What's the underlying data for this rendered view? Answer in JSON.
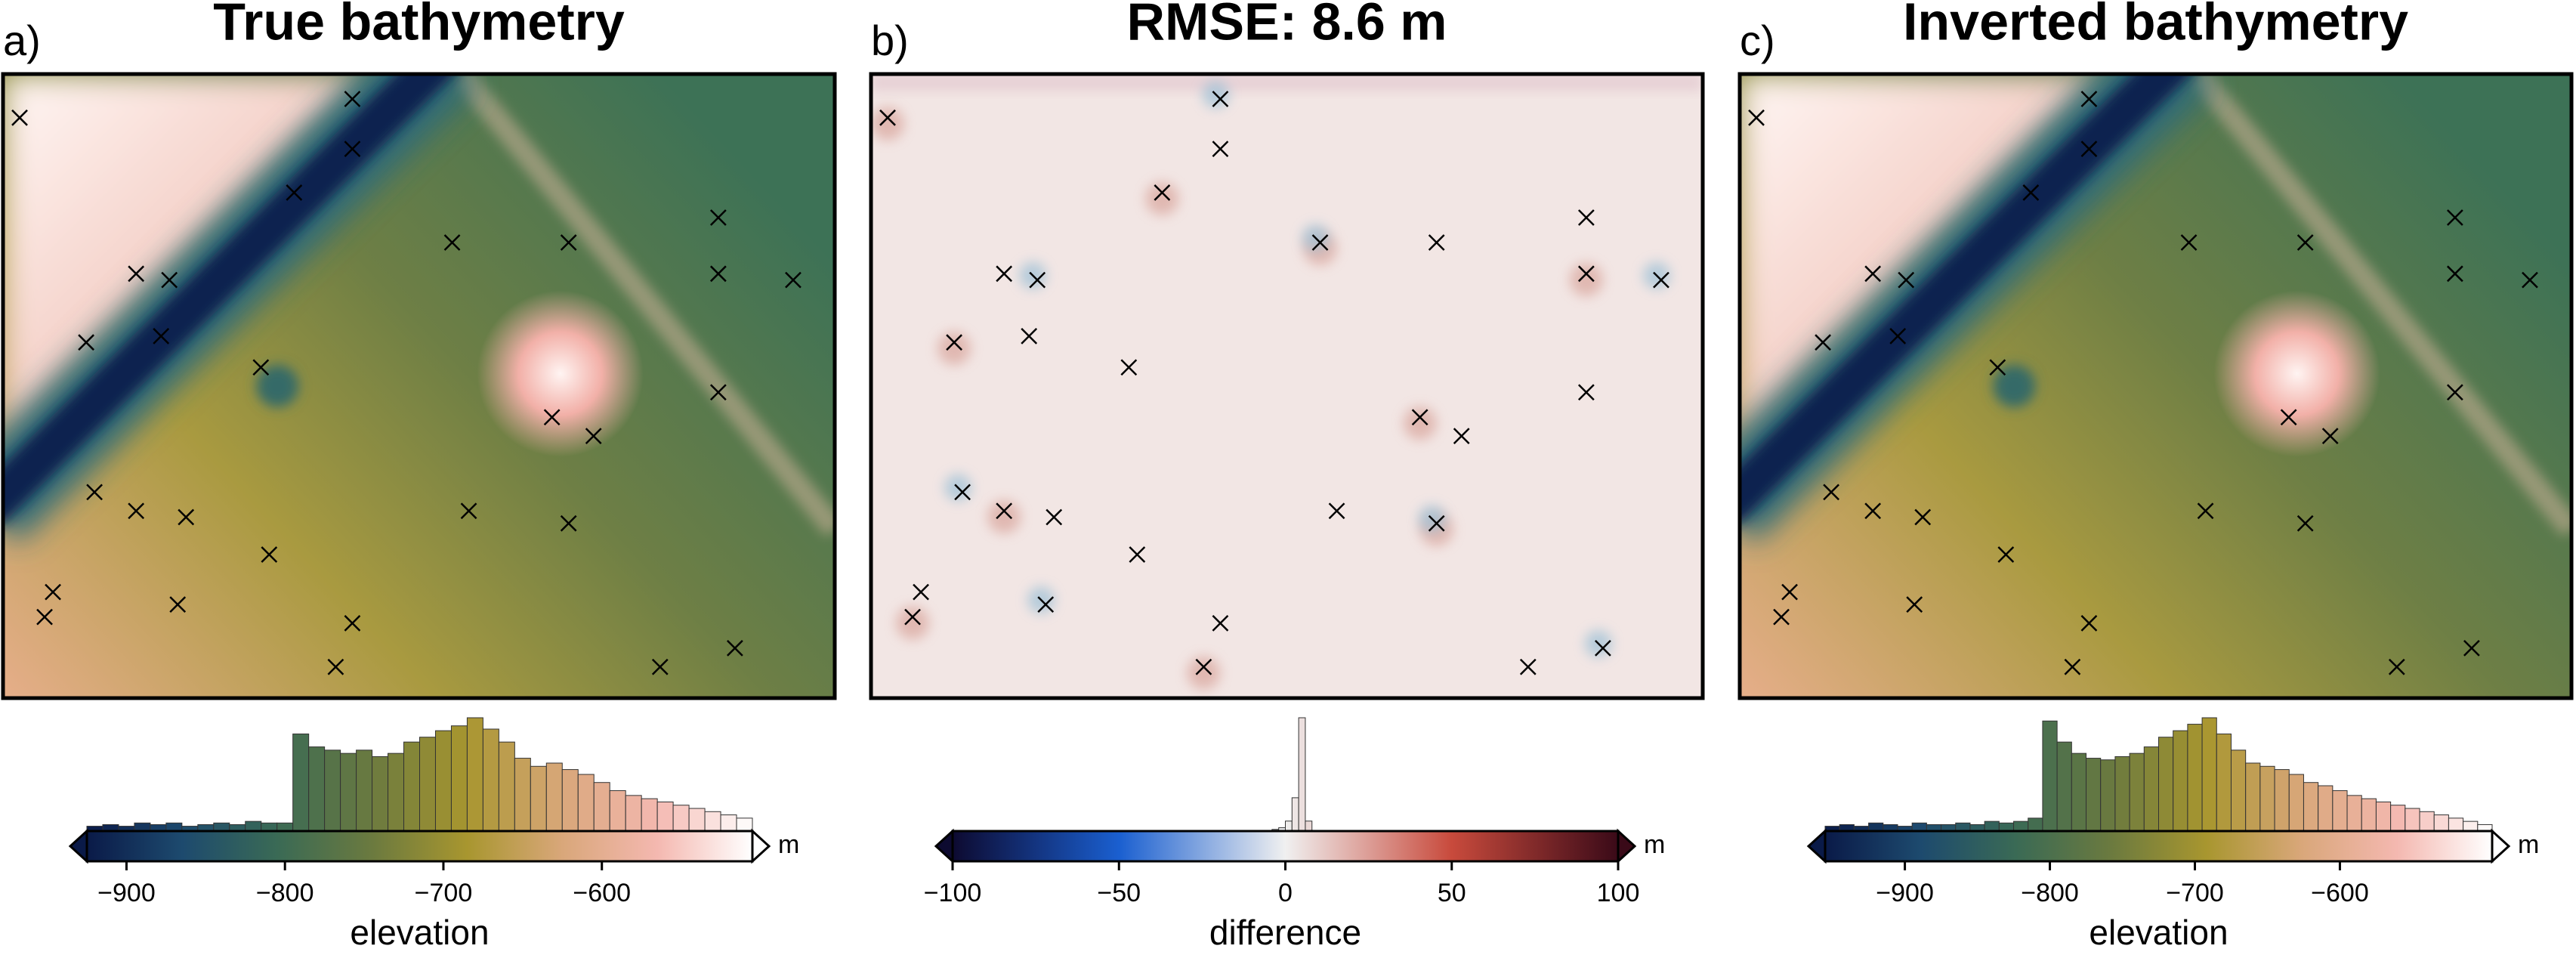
{
  "chart_data": [
    {
      "type": "map_histogram",
      "panel_label": "a)",
      "title": "True bathymetry",
      "points": {
        "x": [
          0.02,
          0.42,
          0.42,
          0.35,
          0.16,
          0.2,
          0.1,
          0.19,
          0.31,
          0.54,
          0.68,
          0.86,
          0.86,
          0.95,
          0.86,
          0.66,
          0.71,
          0.11,
          0.16,
          0.22,
          0.56,
          0.68,
          0.32,
          0.06,
          0.05,
          0.21,
          0.42,
          0.4,
          0.79,
          0.88
        ],
        "y": [
          0.07,
          0.04,
          0.12,
          0.19,
          0.32,
          0.33,
          0.43,
          0.42,
          0.47,
          0.27,
          0.27,
          0.23,
          0.32,
          0.33,
          0.51,
          0.55,
          0.58,
          0.67,
          0.7,
          0.71,
          0.7,
          0.72,
          0.77,
          0.83,
          0.87,
          0.85,
          0.88,
          0.95,
          0.95,
          0.92
        ]
      },
      "colorbar": {
        "xlim": [
          -925,
          -505
        ],
        "xticks": [
          {
            "value": -900,
            "label": "−900"
          },
          {
            "value": -800,
            "label": "−800"
          },
          {
            "value": -700,
            "label": "−700"
          },
          {
            "value": -600,
            "label": "−600"
          }
        ],
        "xlabel": "elevation",
        "unit": "m",
        "colormap": [
          "#0a1a48",
          "#1d4a6e",
          "#3a6a55",
          "#6b7a3f",
          "#a8962f",
          "#d9a77a",
          "#f4b8b0",
          "#ffffff"
        ],
        "bins": [
          -925,
          -915,
          -905,
          -895,
          -885,
          -875,
          -865,
          -855,
          -845,
          -835,
          -825,
          -815,
          -805,
          -795,
          -785,
          -775,
          -765,
          -755,
          -745,
          -735,
          -725,
          -715,
          -705,
          -695,
          -685,
          -675,
          -665,
          -655,
          -645,
          -635,
          -625,
          -615,
          -605,
          -595,
          -585,
          -575,
          -565,
          -555,
          -545,
          -535,
          -525,
          -515,
          -505
        ],
        "counts": [
          3,
          4,
          3,
          5,
          4,
          5,
          3,
          4,
          5,
          4,
          6,
          5,
          5,
          60,
          52,
          50,
          48,
          50,
          46,
          48,
          55,
          58,
          62,
          65,
          70,
          63,
          55,
          45,
          40,
          42,
          38,
          35,
          30,
          25,
          22,
          20,
          18,
          16,
          14,
          12,
          10,
          8
        ]
      }
    },
    {
      "type": "map_histogram",
      "panel_label": "b)",
      "title": "RMSE: 8.6 m",
      "points": {
        "x": [
          0.02,
          0.42,
          0.42,
          0.35,
          0.16,
          0.2,
          0.1,
          0.19,
          0.31,
          0.54,
          0.68,
          0.86,
          0.86,
          0.95,
          0.86,
          0.66,
          0.71,
          0.11,
          0.16,
          0.22,
          0.56,
          0.68,
          0.32,
          0.06,
          0.05,
          0.21,
          0.42,
          0.4,
          0.79,
          0.88
        ],
        "y": [
          0.07,
          0.04,
          0.12,
          0.19,
          0.32,
          0.33,
          0.43,
          0.42,
          0.47,
          0.27,
          0.27,
          0.23,
          0.32,
          0.33,
          0.51,
          0.55,
          0.58,
          0.67,
          0.7,
          0.71,
          0.7,
          0.72,
          0.77,
          0.83,
          0.87,
          0.85,
          0.88,
          0.95,
          0.95,
          0.92
        ]
      },
      "colorbar": {
        "xlim": [
          -100,
          100
        ],
        "xticks": [
          {
            "value": -100,
            "label": "−100"
          },
          {
            "value": -50,
            "label": "−50"
          },
          0,
          50,
          100
        ],
        "xlabel": "difference",
        "unit": "m",
        "colormap": [
          "#0d0a30",
          "#1a5fd0",
          "#f0f0f0",
          "#c84a3c",
          "#3a0a18"
        ],
        "bins": [
          -4,
          -2,
          0,
          2,
          4,
          6,
          8
        ],
        "counts": [
          1,
          2,
          6,
          20,
          68,
          6
        ]
      }
    },
    {
      "type": "map_histogram",
      "panel_label": "c)",
      "title": "Inverted bathymetry",
      "points": {
        "x": [
          0.02,
          0.42,
          0.42,
          0.35,
          0.16,
          0.2,
          0.1,
          0.19,
          0.31,
          0.54,
          0.68,
          0.86,
          0.86,
          0.95,
          0.86,
          0.66,
          0.71,
          0.11,
          0.16,
          0.22,
          0.56,
          0.68,
          0.32,
          0.06,
          0.05,
          0.21,
          0.42,
          0.4,
          0.79,
          0.88
        ],
        "y": [
          0.07,
          0.04,
          0.12,
          0.19,
          0.32,
          0.33,
          0.43,
          0.42,
          0.47,
          0.27,
          0.27,
          0.23,
          0.32,
          0.33,
          0.51,
          0.55,
          0.58,
          0.67,
          0.7,
          0.71,
          0.7,
          0.72,
          0.77,
          0.83,
          0.87,
          0.85,
          0.88,
          0.95,
          0.95,
          0.92
        ]
      },
      "colorbar": {
        "xlim": [
          -955,
          -495
        ],
        "xticks": [
          {
            "value": -900,
            "label": "−900"
          },
          {
            "value": -800,
            "label": "−800"
          },
          {
            "value": -700,
            "label": "−700"
          },
          {
            "value": -600,
            "label": "−600"
          }
        ],
        "xlabel": "elevation",
        "unit": "m",
        "colormap": [
          "#0a1a48",
          "#1d4a6e",
          "#3a6a55",
          "#6b7a3f",
          "#a8962f",
          "#d9a77a",
          "#f4b8b0",
          "#ffffff"
        ],
        "bins": [
          -955,
          -945,
          -935,
          -925,
          -915,
          -905,
          -895,
          -885,
          -875,
          -865,
          -855,
          -845,
          -835,
          -825,
          -815,
          -805,
          -795,
          -785,
          -775,
          -765,
          -755,
          -745,
          -735,
          -725,
          -715,
          -705,
          -695,
          -685,
          -675,
          -665,
          -655,
          -645,
          -635,
          -625,
          -615,
          -605,
          -595,
          -585,
          -575,
          -565,
          -555,
          -545,
          -535,
          -525,
          -515,
          -505,
          -495
        ],
        "counts": [
          3,
          4,
          3,
          5,
          4,
          3,
          5,
          4,
          4,
          5,
          4,
          6,
          5,
          6,
          8,
          68,
          55,
          48,
          45,
          44,
          46,
          48,
          52,
          58,
          62,
          66,
          70,
          60,
          50,
          42,
          40,
          38,
          35,
          30,
          28,
          25,
          22,
          20,
          18,
          16,
          14,
          12,
          10,
          8,
          6,
          4
        ]
      }
    }
  ]
}
